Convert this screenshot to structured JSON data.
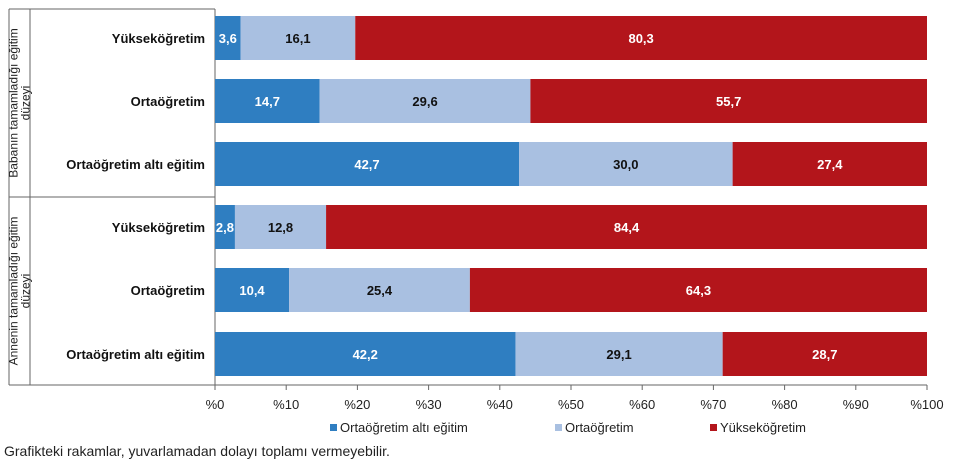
{
  "chart_data": {
    "type": "bar",
    "orientation": "horizontal",
    "stacked": true,
    "groups": [
      {
        "label": "Babanın tamamladığı eğitim düzeyi",
        "label_lines": [
          "Babanın tamamladığı eğitim",
          "düzeyi"
        ],
        "categories": [
          "Yükseköğretim",
          "Ortaöğretim",
          "Ortaöğretim altı eğitim"
        ],
        "values": [
          [
            3.6,
            16.1,
            80.3
          ],
          [
            14.7,
            29.6,
            55.7
          ],
          [
            42.7,
            30.0,
            27.4
          ]
        ],
        "value_labels": [
          [
            "3,6",
            "16,1",
            "80,3"
          ],
          [
            "14,7",
            "29,6",
            "55,7"
          ],
          [
            "42,7",
            "30,0",
            "27,4"
          ]
        ]
      },
      {
        "label": "Annenin tamamladığı eğitim düzeyi",
        "label_lines": [
          "Annenin tamamladığı eğitim",
          "düzeyi"
        ],
        "categories": [
          "Yükseköğretim",
          "Ortaöğretim",
          "Ortaöğretim altı eğitim"
        ],
        "values": [
          [
            2.8,
            12.8,
            84.4
          ],
          [
            10.4,
            25.4,
            64.3
          ],
          [
            42.2,
            29.1,
            28.7
          ]
        ],
        "value_labels": [
          [
            "2,8",
            "12,8",
            "84,4"
          ],
          [
            "10,4",
            "25,4",
            "64,3"
          ],
          [
            "42,2",
            "29,1",
            "28,7"
          ]
        ]
      }
    ],
    "series": [
      {
        "name": "Ortaöğretim altı eğitim",
        "color": "#2f7ec1",
        "label_color": "#ffffff"
      },
      {
        "name": "Ortaöğretim",
        "color": "#a9c0e1",
        "label_color": "#111111"
      },
      {
        "name": "Yükseköğretim",
        "color": "#b3151b",
        "label_color": "#ffffff"
      }
    ],
    "xlim": [
      0,
      100
    ],
    "xticks": [
      "%0",
      "%10",
      "%20",
      "%30",
      "%40",
      "%50",
      "%60",
      "%70",
      "%80",
      "%90",
      "%100"
    ],
    "grid": false,
    "legend_position": "bottom"
  },
  "footnote": "Grafikteki rakamlar, yuvarlamadan dolayı toplamı vermeyebilir."
}
